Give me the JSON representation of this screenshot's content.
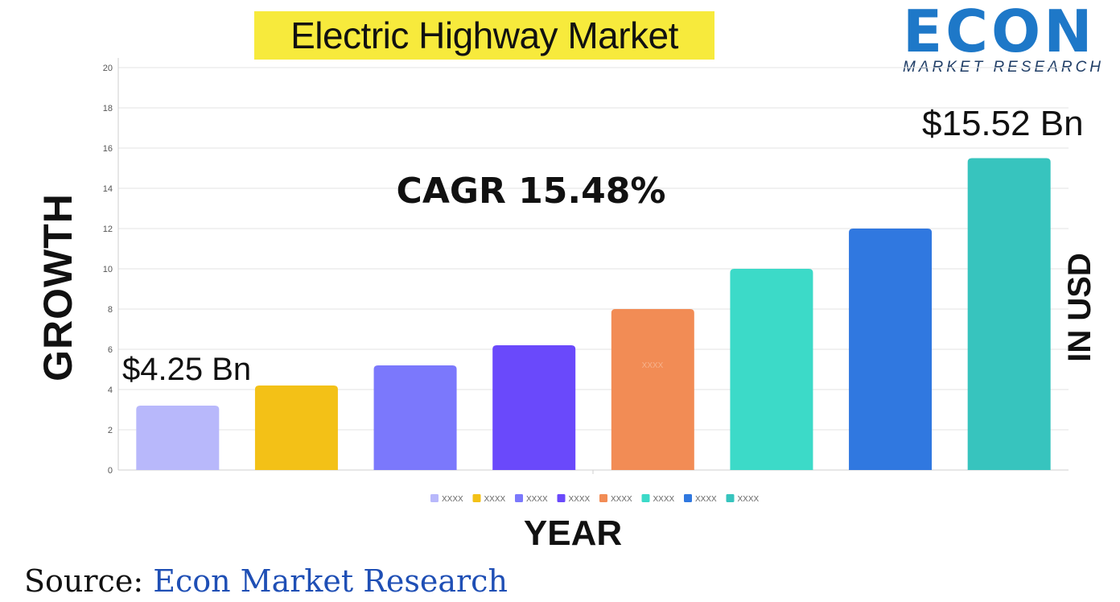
{
  "header": {
    "title": "Electric Highway Market"
  },
  "logo": {
    "wordmark": "ECON",
    "subtitle": "MARKET RESEARCH"
  },
  "labels": {
    "y_axis": "GROWTH",
    "x_axis": "YEAR",
    "unit": "IN USD",
    "cagr": "CAGR 15.48%",
    "start_value": "$4.25 Bn",
    "end_value": "$15.52 Bn",
    "bar_inner_label": "XXXX"
  },
  "source": {
    "label": "Source:",
    "name": "Econ Market Research"
  },
  "colors": {
    "title_highlight": "#f7ea3c",
    "logo_blue": "#1e78c8",
    "source_blue": "#1f4fb5"
  },
  "chart_data": {
    "type": "bar",
    "categories": [
      "XXXX",
      "XXXX",
      "XXXX",
      "XXXX",
      "XXXX",
      "XXXX",
      "XXXX",
      "XXXX"
    ],
    "values": [
      3.2,
      4.2,
      5.2,
      6.2,
      8.0,
      10.0,
      12.0,
      15.5
    ],
    "colors": [
      "#b8b8fb",
      "#f3c117",
      "#7b78fc",
      "#6a49fb",
      "#f28c55",
      "#3cdac8",
      "#3078e0",
      "#37c4be"
    ],
    "ylim": [
      0,
      20
    ],
    "yticks": [
      0,
      2,
      4,
      6,
      8,
      10,
      12,
      14,
      16,
      18,
      20
    ],
    "grid": true,
    "legend": "bottom"
  }
}
